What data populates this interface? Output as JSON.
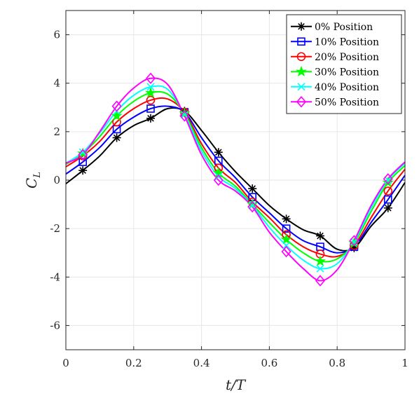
{
  "chart_data": {
    "type": "line",
    "title": "",
    "xlabel": "t/T",
    "ylabel_main": "C",
    "ylabel_sub": "L",
    "xlim": [
      0,
      1
    ],
    "ylim": [
      -7,
      7
    ],
    "xticks": [
      0,
      0.2,
      0.4,
      0.6,
      0.8,
      1
    ],
    "xtick_labels": [
      "0",
      "0.2",
      "0.4",
      "0.6",
      "0.8",
      "1"
    ],
    "yticks": [
      -6,
      -4,
      -2,
      0,
      2,
      4,
      6
    ],
    "ytick_labels": [
      "-6",
      "-4",
      "-2",
      "0",
      "2",
      "4",
      "6"
    ],
    "grid": true,
    "legend_position": "top-right",
    "series": [
      {
        "name": "0% Position",
        "color": "#000000",
        "marker": "asterisk",
        "x": [
          0,
          0.05,
          0.1,
          0.15,
          0.2,
          0.25,
          0.3,
          0.35,
          0.4,
          0.45,
          0.5,
          0.55,
          0.6,
          0.65,
          0.7,
          0.75,
          0.8,
          0.85,
          0.9,
          0.95,
          1.0
        ],
        "y": [
          -0.15,
          0.4,
          1.0,
          1.75,
          2.25,
          2.55,
          2.95,
          2.85,
          2.05,
          1.15,
          0.35,
          -0.35,
          -1.05,
          -1.6,
          -2.05,
          -2.3,
          -2.85,
          -2.8,
          -1.9,
          -1.15,
          -0.1
        ],
        "marker_x": [
          0.05,
          0.15,
          0.25,
          0.35,
          0.45,
          0.55,
          0.65,
          0.75,
          0.85,
          0.95
        ],
        "marker_y": [
          0.4,
          1.75,
          2.55,
          2.85,
          1.15,
          -0.35,
          -1.6,
          -2.3,
          -2.8,
          -1.15
        ]
      },
      {
        "name": "10% Position",
        "color": "#0000ff",
        "marker": "square",
        "x": [
          0,
          0.05,
          0.1,
          0.15,
          0.2,
          0.25,
          0.3,
          0.35,
          0.4,
          0.45,
          0.5,
          0.55,
          0.6,
          0.65,
          0.7,
          0.75,
          0.8,
          0.85,
          0.9,
          0.95,
          1.0
        ],
        "y": [
          0.25,
          0.75,
          1.35,
          2.1,
          2.6,
          2.95,
          3.05,
          2.8,
          1.75,
          0.8,
          0.1,
          -0.7,
          -1.35,
          -2.0,
          -2.5,
          -2.75,
          -3.0,
          -2.75,
          -1.75,
          -0.8,
          0.2
        ],
        "marker_x": [
          0.05,
          0.15,
          0.25,
          0.35,
          0.45,
          0.55,
          0.65,
          0.75,
          0.85,
          0.95
        ],
        "marker_y": [
          0.75,
          2.1,
          2.95,
          2.8,
          0.8,
          -0.7,
          -2.0,
          -2.75,
          -2.75,
          -0.8
        ]
      },
      {
        "name": "20% Position",
        "color": "#ff0000",
        "marker": "circle",
        "x": [
          0,
          0.05,
          0.1,
          0.15,
          0.2,
          0.25,
          0.3,
          0.35,
          0.4,
          0.45,
          0.5,
          0.55,
          0.6,
          0.65,
          0.7,
          0.75,
          0.8,
          0.85,
          0.9,
          0.95,
          1.0
        ],
        "y": [
          0.55,
          1.0,
          1.6,
          2.4,
          2.95,
          3.3,
          3.35,
          2.8,
          1.5,
          0.5,
          -0.1,
          -0.9,
          -1.55,
          -2.25,
          -2.75,
          -3.05,
          -3.15,
          -2.7,
          -1.55,
          -0.45,
          0.45
        ],
        "marker_x": [
          0.05,
          0.15,
          0.25,
          0.35,
          0.45,
          0.55,
          0.65,
          0.75,
          0.85,
          0.95
        ],
        "marker_y": [
          1.0,
          2.4,
          3.3,
          2.8,
          0.5,
          -0.9,
          -2.25,
          -3.05,
          -2.7,
          -0.45
        ]
      },
      {
        "name": "30% Position",
        "color": "#00ff00",
        "marker": "star",
        "x": [
          0,
          0.05,
          0.1,
          0.15,
          0.2,
          0.25,
          0.3,
          0.35,
          0.4,
          0.45,
          0.5,
          0.55,
          0.6,
          0.65,
          0.7,
          0.75,
          0.8,
          0.85,
          0.9,
          0.95,
          1.0
        ],
        "y": [
          0.65,
          1.1,
          1.8,
          2.65,
          3.25,
          3.6,
          3.55,
          2.75,
          1.35,
          0.3,
          -0.25,
          -1.0,
          -1.75,
          -2.45,
          -3.0,
          -3.35,
          -3.25,
          -2.6,
          -1.3,
          -0.1,
          0.6
        ],
        "marker_x": [
          0.05,
          0.15,
          0.25,
          0.35,
          0.45,
          0.55,
          0.65,
          0.75,
          0.85,
          0.95
        ],
        "marker_y": [
          1.1,
          2.65,
          3.6,
          2.75,
          0.3,
          -1.0,
          -2.45,
          -3.35,
          -2.6,
          -0.1
        ]
      },
      {
        "name": "40% Position",
        "color": "#00ffff",
        "marker": "x",
        "x": [
          0,
          0.05,
          0.1,
          0.15,
          0.2,
          0.25,
          0.3,
          0.35,
          0.4,
          0.45,
          0.5,
          0.55,
          0.6,
          0.65,
          0.7,
          0.75,
          0.8,
          0.85,
          0.9,
          0.95,
          1.0
        ],
        "y": [
          0.7,
          1.15,
          1.95,
          2.85,
          3.5,
          3.85,
          3.75,
          2.7,
          1.2,
          0.15,
          -0.35,
          -1.05,
          -1.95,
          -2.7,
          -3.3,
          -3.65,
          -3.45,
          -2.55,
          -1.15,
          0.0,
          0.7
        ],
        "marker_x": [
          0.05,
          0.15,
          0.25,
          0.35,
          0.45,
          0.55,
          0.65,
          0.75,
          0.85,
          0.95
        ],
        "marker_y": [
          1.15,
          2.85,
          3.85,
          2.7,
          0.15,
          -1.05,
          -2.7,
          -3.65,
          -2.55,
          0.0
        ]
      },
      {
        "name": "50% Position",
        "color": "#ff00ff",
        "marker": "diamond",
        "x": [
          0,
          0.05,
          0.1,
          0.15,
          0.2,
          0.25,
          0.3,
          0.35,
          0.4,
          0.45,
          0.5,
          0.55,
          0.6,
          0.65,
          0.7,
          0.75,
          0.8,
          0.85,
          0.9,
          0.95,
          1.0
        ],
        "y": [
          0.7,
          1.05,
          2.0,
          3.05,
          3.8,
          4.2,
          3.95,
          2.65,
          1.05,
          0.0,
          -0.45,
          -1.1,
          -2.15,
          -2.95,
          -3.65,
          -4.15,
          -3.7,
          -2.5,
          -1.05,
          0.05,
          0.75
        ],
        "marker_x": [
          0.05,
          0.15,
          0.25,
          0.35,
          0.45,
          0.55,
          0.65,
          0.75,
          0.85,
          0.95
        ],
        "marker_y": [
          1.05,
          3.05,
          4.2,
          2.65,
          0.0,
          -1.1,
          -2.95,
          -4.15,
          -2.5,
          0.05
        ]
      }
    ]
  }
}
